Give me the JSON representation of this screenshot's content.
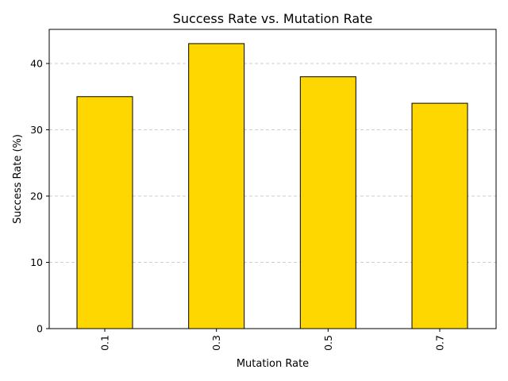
{
  "chart_data": {
    "type": "bar",
    "title": "Success Rate vs. Mutation Rate",
    "xlabel": "Mutation Rate",
    "ylabel": "Success Rate (%)",
    "categories": [
      "0.1",
      "0.3",
      "0.5",
      "0.7"
    ],
    "values": [
      35,
      43,
      38,
      34
    ],
    "ylim": [
      0,
      45.15
    ],
    "yticks": [
      0,
      10,
      20,
      30,
      40
    ],
    "grid": "horizontal dashed",
    "legend": "none",
    "xtick_rotation": "vertical",
    "colors": {
      "bar_fill": "#FFD700",
      "bar_edge": "#000000",
      "grid": "#bfbfbf",
      "axis": "#000000",
      "background": "#ffffff"
    }
  }
}
